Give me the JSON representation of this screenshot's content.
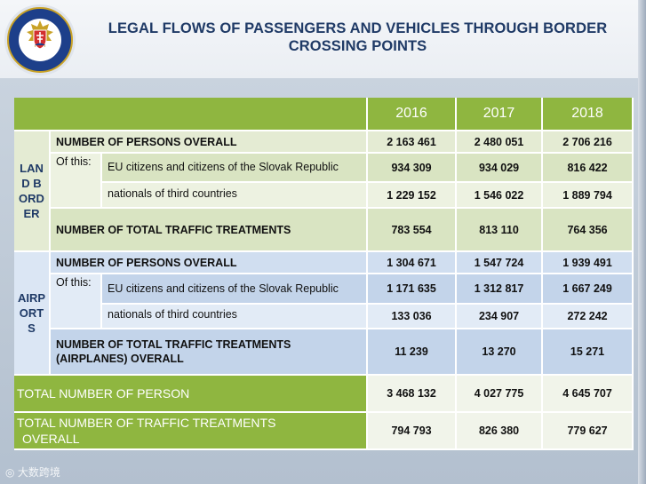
{
  "title": "LEGAL FLOWS OF PASSENGERS AND VEHICLES THROUGH BORDER CROSSING POINTS",
  "years": [
    "2016",
    "2017",
    "2018"
  ],
  "land": {
    "label": "LAND BORDER",
    "persons_overall": {
      "label": "NUMBER OF PERSONS OVERALL",
      "values": [
        "2 163 461",
        "2 480 051",
        "2 706 216"
      ]
    },
    "of_this": "Of this:",
    "eu_citizens": {
      "label": "EU citizens and citizens of the Slovak Republic",
      "values": [
        "934 309",
        "934 029",
        "816 422"
      ]
    },
    "third_countries": {
      "label": "nationals of third countries",
      "values": [
        "1 229 152",
        "1 546 022",
        "1 889 794"
      ]
    },
    "traffic_treatments": {
      "label": "NUMBER OF TOTAL TRAFFIC TREATMENTS",
      "values": [
        "783 554",
        "813 110",
        "764 356"
      ]
    }
  },
  "airports": {
    "label": "AIRPORTS",
    "persons_overall": {
      "label": "NUMBER OF PERSONS OVERALL",
      "values": [
        "1 304 671",
        "1 547 724",
        "1 939 491"
      ]
    },
    "of_this": "Of this:",
    "eu_citizens": {
      "label": "EU citizens and citizens of the Slovak Republic",
      "values": [
        "1 171 635",
        "1 312 817",
        "1 667 249"
      ]
    },
    "third_countries": {
      "label": "nationals of third countries",
      "values": [
        "133 036",
        "234 907",
        "272 242"
      ]
    },
    "traffic_treatments": {
      "label": "NUMBER OF TOTAL TRAFFIC TREATMENTS (AIRPLANES) OVERALL",
      "values": [
        "11 239",
        "13 270",
        "15 271"
      ]
    }
  },
  "total_persons": {
    "label": "TOTAL NUMBER OF PERSON",
    "values": [
      "3 468 132",
      "4 027 775",
      "4 645 707"
    ]
  },
  "total_traffic": {
    "label": "TOTAL NUMBER OF TRAFFIC TREATMENTS OVERALL",
    "values": [
      "794 793",
      "826 380",
      "779 627"
    ]
  },
  "watermark": "大数跨境",
  "colors": {
    "header_green": "#8fb640",
    "title_blue": "#1f3a66"
  }
}
